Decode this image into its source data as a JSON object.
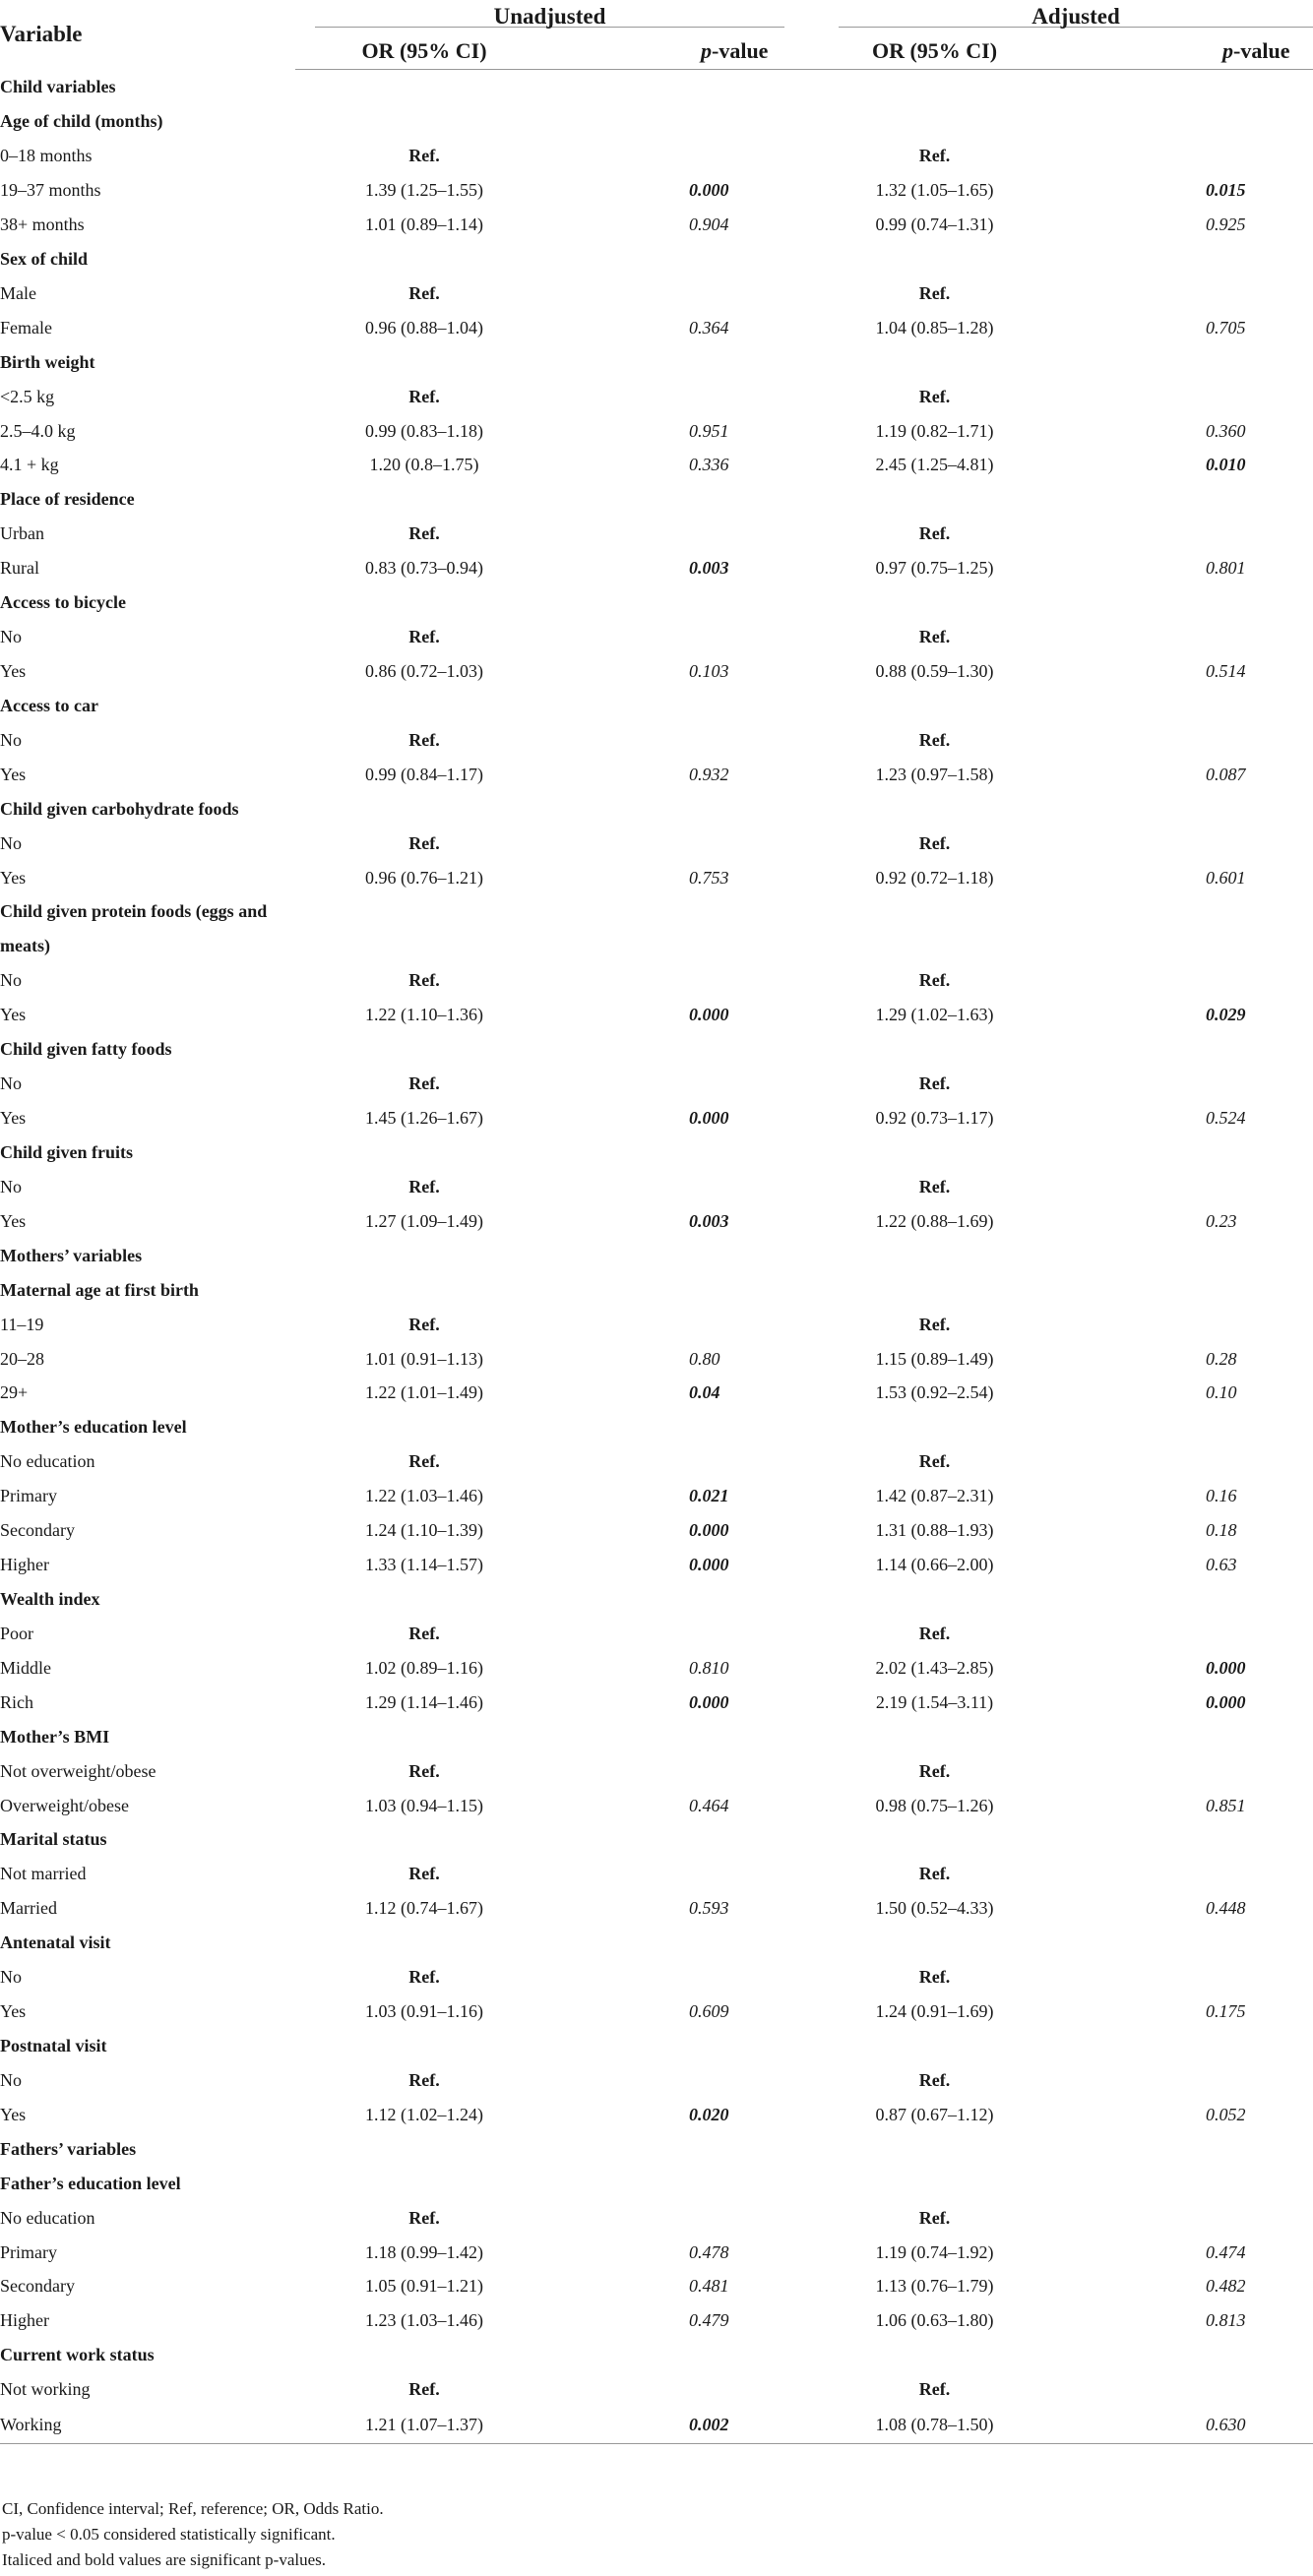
{
  "header": {
    "variable": "Variable",
    "group_unadjusted": "Unadjusted",
    "group_adjusted": "Adjusted",
    "or_ci": "OR (95% CI)",
    "p_italic": "p",
    "p_rest": "-value"
  },
  "rows": [
    {
      "label": "Child variables",
      "type": "section"
    },
    {
      "label": "Age of child (months)",
      "type": "subsection"
    },
    {
      "label": "0–18 months",
      "or_u": "Ref.",
      "p_u": "",
      "or_a": "Ref.",
      "p_a": ""
    },
    {
      "label": "19–37 months",
      "or_u": "1.39 (1.25–1.55)",
      "p_u": "0.000",
      "or_a": "1.32 (1.05–1.65)",
      "p_a": "0.015",
      "sig_u": true,
      "sig_a": true
    },
    {
      "label": "38+ months",
      "or_u": "1.01 (0.89–1.14)",
      "p_u": "0.904",
      "or_a": "0.99 (0.74–1.31)",
      "p_a": "0.925"
    },
    {
      "label": "Sex of child",
      "type": "subsection"
    },
    {
      "label": "Male",
      "or_u": "Ref.",
      "p_u": "",
      "or_a": "Ref.",
      "p_a": ""
    },
    {
      "label": "Female",
      "or_u": "0.96 (0.88–1.04)",
      "p_u": "0.364",
      "or_a": "1.04 (0.85–1.28)",
      "p_a": "0.705"
    },
    {
      "label": "Birth weight",
      "type": "subsection"
    },
    {
      "label": "<2.5 kg",
      "or_u": "Ref.",
      "p_u": "",
      "or_a": "Ref.",
      "p_a": ""
    },
    {
      "label": "2.5–4.0 kg",
      "or_u": "0.99 (0.83–1.18)",
      "p_u": "0.951",
      "or_a": "1.19 (0.82–1.71)",
      "p_a": "0.360"
    },
    {
      "label": "4.1 + kg",
      "or_u": "1.20 (0.8–1.75)",
      "p_u": "0.336",
      "or_a": "2.45 (1.25–4.81)",
      "p_a": "0.010",
      "sig_a": true
    },
    {
      "label": "Place of residence",
      "type": "subsection"
    },
    {
      "label": "Urban",
      "or_u": "Ref.",
      "p_u": "",
      "or_a": "Ref.",
      "p_a": ""
    },
    {
      "label": "Rural",
      "or_u": "0.83 (0.73–0.94)",
      "p_u": "0.003",
      "or_a": "0.97 (0.75–1.25)",
      "p_a": "0.801",
      "sig_u": true
    },
    {
      "label": "Access to bicycle",
      "type": "subsection"
    },
    {
      "label": "No",
      "or_u": "Ref.",
      "p_u": "",
      "or_a": "Ref.",
      "p_a": ""
    },
    {
      "label": "Yes",
      "or_u": "0.86 (0.72–1.03)",
      "p_u": "0.103",
      "or_a": "0.88 (0.59–1.30)",
      "p_a": "0.514"
    },
    {
      "label": "Access to car",
      "type": "subsection"
    },
    {
      "label": "No",
      "or_u": "Ref.",
      "p_u": "",
      "or_a": "Ref.",
      "p_a": ""
    },
    {
      "label": "Yes",
      "or_u": "0.99 (0.84–1.17)",
      "p_u": "0.932",
      "or_a": "1.23 (0.97–1.58)",
      "p_a": "0.087"
    },
    {
      "label": "Child given carbohydrate foods",
      "type": "subsection"
    },
    {
      "label": "No",
      "or_u": "Ref.",
      "p_u": "",
      "or_a": "Ref.",
      "p_a": ""
    },
    {
      "label": "Yes",
      "or_u": "0.96 (0.76–1.21)",
      "p_u": "0.753",
      "or_a": "0.92 (0.72–1.18)",
      "p_a": "0.601"
    },
    {
      "label": "Child given protein foods (eggs and meats)",
      "type": "subsection",
      "wrap": true
    },
    {
      "label": "No",
      "or_u": "Ref.",
      "p_u": "",
      "or_a": "Ref.",
      "p_a": ""
    },
    {
      "label": "Yes",
      "or_u": "1.22 (1.10–1.36)",
      "p_u": "0.000",
      "or_a": "1.29 (1.02–1.63)",
      "p_a": "0.029",
      "sig_u": true,
      "sig_a": true
    },
    {
      "label": "Child given fatty foods",
      "type": "subsection"
    },
    {
      "label": "No",
      "or_u": "Ref.",
      "p_u": "",
      "or_a": "Ref.",
      "p_a": ""
    },
    {
      "label": "Yes",
      "or_u": "1.45 (1.26–1.67)",
      "p_u": "0.000",
      "or_a": "0.92 (0.73–1.17)",
      "p_a": "0.524",
      "sig_u": true
    },
    {
      "label": "Child given fruits",
      "type": "subsection"
    },
    {
      "label": "No",
      "or_u": "Ref.",
      "p_u": "",
      "or_a": "Ref.",
      "p_a": ""
    },
    {
      "label": "Yes",
      "or_u": "1.27 (1.09–1.49)",
      "p_u": "0.003",
      "or_a": "1.22 (0.88–1.69)",
      "p_a": "0.23",
      "sig_u": true
    },
    {
      "label": "Mothers’ variables",
      "type": "section"
    },
    {
      "label": "Maternal age at first birth",
      "type": "subsection"
    },
    {
      "label": "11–19",
      "or_u": "Ref.",
      "p_u": "",
      "or_a": "Ref.",
      "p_a": ""
    },
    {
      "label": "20–28",
      "or_u": "1.01 (0.91–1.13)",
      "p_u": "0.80",
      "or_a": "1.15 (0.89–1.49)",
      "p_a": "0.28"
    },
    {
      "label": "29+",
      "or_u": "1.22 (1.01–1.49)",
      "p_u": "0.04",
      "or_a": "1.53 (0.92–2.54)",
      "p_a": "0.10",
      "sig_u": true
    },
    {
      "label": "Mother’s education level",
      "type": "subsection"
    },
    {
      "label": "No education",
      "or_u": "Ref.",
      "p_u": "",
      "or_a": "Ref.",
      "p_a": ""
    },
    {
      "label": "Primary",
      "or_u": "1.22 (1.03–1.46)",
      "p_u": "0.021",
      "or_a": "1.42 (0.87–2.31)",
      "p_a": "0.16",
      "sig_u": true
    },
    {
      "label": "Secondary",
      "or_u": "1.24 (1.10–1.39)",
      "p_u": "0.000",
      "or_a": "1.31 (0.88–1.93)",
      "p_a": "0.18",
      "sig_u": true
    },
    {
      "label": "Higher",
      "or_u": "1.33 (1.14–1.57)",
      "p_u": "0.000",
      "or_a": "1.14 (0.66–2.00)",
      "p_a": "0.63",
      "sig_u": true
    },
    {
      "label": "Wealth index",
      "type": "subsection"
    },
    {
      "label": "Poor",
      "or_u": "Ref.",
      "p_u": "",
      "or_a": "Ref.",
      "p_a": ""
    },
    {
      "label": "Middle",
      "or_u": "1.02 (0.89–1.16)",
      "p_u": "0.810",
      "or_a": "2.02 (1.43–2.85)",
      "p_a": "0.000",
      "sig_a": true
    },
    {
      "label": "Rich",
      "or_u": "1.29 (1.14–1.46)",
      "p_u": "0.000",
      "or_a": "2.19 (1.54–3.11)",
      "p_a": "0.000",
      "sig_u": true,
      "sig_a": true
    },
    {
      "label": "Mother’s BMI",
      "type": "subsection"
    },
    {
      "label": "Not overweight/obese",
      "or_u": "Ref.",
      "p_u": "",
      "or_a": "Ref.",
      "p_a": ""
    },
    {
      "label": "Overweight/obese",
      "or_u": "1.03 (0.94–1.15)",
      "p_u": "0.464",
      "or_a": "0.98 (0.75–1.26)",
      "p_a": "0.851"
    },
    {
      "label": "Marital status",
      "type": "subsection"
    },
    {
      "label": "Not married",
      "or_u": "Ref.",
      "p_u": "",
      "or_a": "Ref.",
      "p_a": ""
    },
    {
      "label": "Married",
      "or_u": "1.12 (0.74–1.67)",
      "p_u": "0.593",
      "or_a": "1.50 (0.52–4.33)",
      "p_a": "0.448"
    },
    {
      "label": "Antenatal visit",
      "type": "subsection"
    },
    {
      "label": "No",
      "or_u": "Ref.",
      "p_u": "",
      "or_a": "Ref.",
      "p_a": ""
    },
    {
      "label": "Yes",
      "or_u": "1.03 (0.91–1.16)",
      "p_u": "0.609",
      "or_a": "1.24 (0.91–1.69)",
      "p_a": "0.175"
    },
    {
      "label": "Postnatal visit",
      "type": "subsection"
    },
    {
      "label": "No",
      "or_u": "Ref.",
      "p_u": "",
      "or_a": "Ref.",
      "p_a": ""
    },
    {
      "label": "Yes",
      "or_u": "1.12 (1.02–1.24)",
      "p_u": "0.020",
      "or_a": "0.87 (0.67–1.12)",
      "p_a": "0.052",
      "sig_u": true
    },
    {
      "label": "Fathers’ variables",
      "type": "section"
    },
    {
      "label": "Father’s education level",
      "type": "subsection"
    },
    {
      "label": "No education",
      "or_u": "Ref.",
      "p_u": "",
      "or_a": "Ref.",
      "p_a": ""
    },
    {
      "label": "Primary",
      "or_u": "1.18 (0.99–1.42)",
      "p_u": "0.478",
      "or_a": "1.19 (0.74–1.92)",
      "p_a": "0.474"
    },
    {
      "label": "Secondary",
      "or_u": "1.05 (0.91–1.21)",
      "p_u": "0.481",
      "or_a": "1.13 (0.76–1.79)",
      "p_a": "0.482"
    },
    {
      "label": "Higher",
      "or_u": "1.23 (1.03–1.46)",
      "p_u": "0.479",
      "or_a": "1.06 (0.63–1.80)",
      "p_a": "0.813"
    },
    {
      "label": "Current work status",
      "type": "subsection"
    },
    {
      "label": "Not working",
      "or_u": "Ref.",
      "p_u": "",
      "or_a": "Ref.",
      "p_a": ""
    },
    {
      "label": "Working",
      "or_u": "1.21 (1.07–1.37)",
      "p_u": "0.002",
      "or_a": "1.08 (0.78–1.50)",
      "p_a": "0.630",
      "sig_u": true
    }
  ],
  "footnotes": [
    "CI, Confidence interval; Ref, reference; OR, Odds Ratio.",
    "p-value < 0.05 considered statistically significant.",
    "Italiced and bold values are significant p-values."
  ]
}
